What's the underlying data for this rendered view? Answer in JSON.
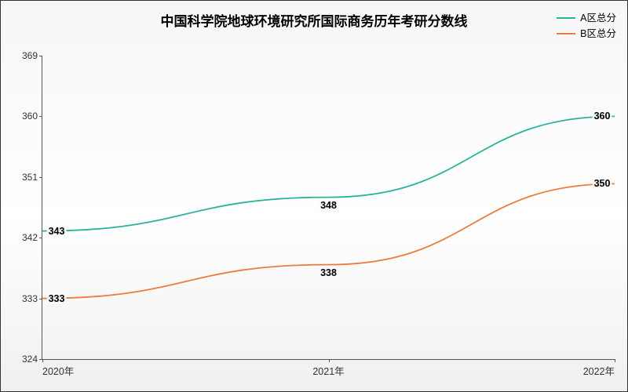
{
  "chart": {
    "type": "line",
    "title": "中国科学院地球环境研究所国际商务历年考研分数线",
    "title_fontsize": 17,
    "background_gradient": [
      "#f7f7f7",
      "#ffffff",
      "#f0f0f0"
    ],
    "axis_color": "#555555",
    "label_color": "#333333",
    "legend_fontsize": 12.5,
    "xlabels": [
      "2020年",
      "2021年",
      "2022年"
    ],
    "ylim": [
      324,
      369
    ],
    "yticks": [
      324,
      333,
      342,
      351,
      360,
      369
    ],
    "series": [
      {
        "name": "A区总分",
        "color": "#2bb39a",
        "line_width": 1.8,
        "values": [
          343,
          348,
          360
        ]
      },
      {
        "name": "B区总分",
        "color": "#e97c3e",
        "line_width": 1.8,
        "values": [
          333,
          338,
          350
        ]
      }
    ],
    "point_label_fontsize": 12.5,
    "smooth": true
  }
}
